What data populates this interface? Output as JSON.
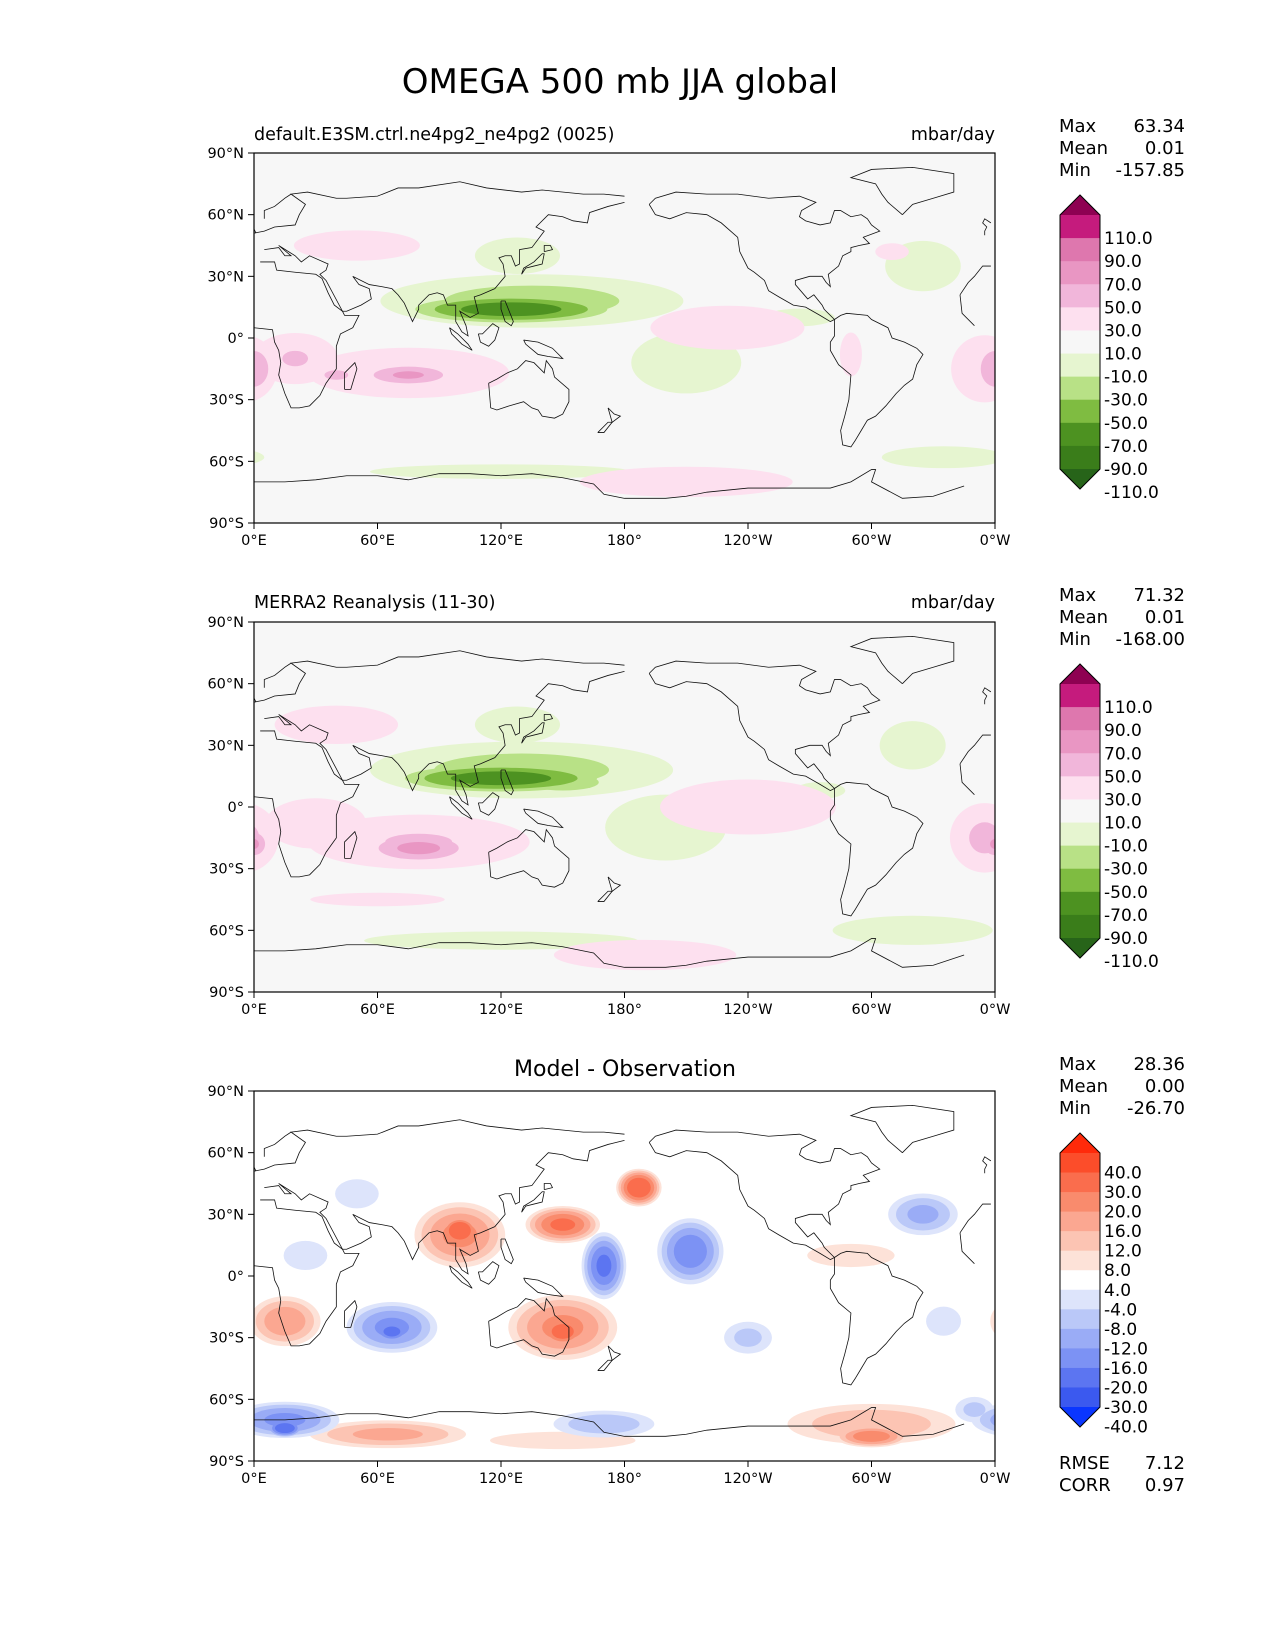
{
  "figure_title": "OMEGA 500 mb JJA global",
  "chart_data": [
    {
      "type": "heatmap",
      "id": "test",
      "title_left": "default.E3SM.ctrl.ne4pg2_ne4pg2 (0025)",
      "title_center": "",
      "units": "mbar/day",
      "x_ticks": [
        "0°E",
        "60°E",
        "120°E",
        "180°",
        "120°W",
        "60°W",
        "0°W"
      ],
      "y_ticks": [
        "90°N",
        "60°N",
        "30°N",
        "0°",
        "30°S",
        "60°S",
        "90°S"
      ],
      "xlim": [
        0,
        360
      ],
      "ylim": [
        -90,
        90
      ],
      "stats": [
        {
          "label": "Max",
          "value": "63.34"
        },
        {
          "label": "Mean",
          "value": "0.01"
        },
        {
          "label": "Min",
          "value": "-157.85"
        }
      ],
      "colorbar": {
        "levels": [
          "110.0",
          "90.0",
          "70.0",
          "50.0",
          "30.0",
          "10.0",
          "-10.0",
          "-30.0",
          "-50.0",
          "-70.0",
          "-90.0",
          "-110.0"
        ],
        "colors": [
          "#8e0152",
          "#c51b7d",
          "#de77ae",
          "#e996c3",
          "#f1b6da",
          "#fde0ef",
          "#f7f7f7",
          "#e6f5d0",
          "#b8e186",
          "#7fbc41",
          "#4d9221",
          "#3a7d1a",
          "#276419"
        ]
      },
      "features": [
        {
          "lon": 125,
          "lat": 14,
          "rx": 58,
          "ry": 8,
          "v": -85
        },
        {
          "lon": 155,
          "lat": 12,
          "rx": 28,
          "ry": 6,
          "v": -35
        },
        {
          "lon": 92,
          "lat": 18,
          "rx": 12,
          "ry": 6,
          "v": -30
        },
        {
          "lon": 135,
          "lat": 18,
          "rx": 85,
          "ry": 15,
          "v": -40
        },
        {
          "lon": 128,
          "lat": 40,
          "rx": 28,
          "ry": 12,
          "v": -22
        },
        {
          "lon": 210,
          "lat": -12,
          "rx": 50,
          "ry": 28,
          "v": -14
        },
        {
          "lon": 325,
          "lat": 35,
          "rx": 30,
          "ry": 20,
          "v": -16
        },
        {
          "lon": 120,
          "lat": -65,
          "rx": 90,
          "ry": 5,
          "v": -20
        },
        {
          "lon": 335,
          "lat": -58,
          "rx": 45,
          "ry": 8,
          "v": -18
        },
        {
          "lon": 265,
          "lat": 10,
          "rx": 32,
          "ry": 8,
          "v": -14
        },
        {
          "lon": 75,
          "lat": -17,
          "rx": 60,
          "ry": 15,
          "v": 30
        },
        {
          "lon": 75,
          "lat": -18,
          "rx": 25,
          "ry": 6,
          "v": 55
        },
        {
          "lon": 20,
          "lat": -10,
          "rx": 25,
          "ry": 15,
          "v": 32
        },
        {
          "lon": 40,
          "lat": -18,
          "rx": 10,
          "ry": 4,
          "v": 45
        },
        {
          "lon": 0,
          "lat": -15,
          "rx": 12,
          "ry": 15,
          "v": 45
        },
        {
          "lon": 355,
          "lat": -15,
          "rx": 20,
          "ry": 20,
          "v": 30
        },
        {
          "lon": 230,
          "lat": 5,
          "rx": 70,
          "ry": 20,
          "v": 14
        },
        {
          "lon": 210,
          "lat": -70,
          "rx": 70,
          "ry": 10,
          "v": 22
        },
        {
          "lon": 50,
          "lat": 45,
          "rx": 50,
          "ry": 12,
          "v": 16
        },
        {
          "lon": 310,
          "lat": 42,
          "rx": 20,
          "ry": 10,
          "v": 12
        },
        {
          "lon": 290,
          "lat": -8,
          "rx": 10,
          "ry": 20,
          "v": 14
        }
      ]
    },
    {
      "type": "heatmap",
      "id": "reference",
      "title_left": "MERRA2 Reanalysis (11-30)",
      "title_center": "",
      "units": "mbar/day",
      "x_ticks": [
        "0°E",
        "60°E",
        "120°E",
        "180°",
        "120°W",
        "60°W",
        "0°W"
      ],
      "y_ticks": [
        "90°N",
        "60°N",
        "30°N",
        "0°",
        "30°S",
        "60°S",
        "90°S"
      ],
      "xlim": [
        0,
        360
      ],
      "ylim": [
        -90,
        90
      ],
      "stats": [
        {
          "label": "Max",
          "value": "71.32"
        },
        {
          "label": "Mean",
          "value": "0.01"
        },
        {
          "label": "Min",
          "value": "-168.00"
        }
      ],
      "colorbar": {
        "levels": [
          "110.0",
          "90.0",
          "70.0",
          "50.0",
          "30.0",
          "10.0",
          "-10.0",
          "-30.0",
          "-50.0",
          "-70.0",
          "-90.0",
          "-110.0"
        ],
        "colors": [
          "#8e0152",
          "#c51b7d",
          "#de77ae",
          "#e996c3",
          "#f1b6da",
          "#fde0ef",
          "#f7f7f7",
          "#e6f5d0",
          "#b8e186",
          "#7fbc41",
          "#4d9221",
          "#3a7d1a",
          "#276419"
        ]
      },
      "features": [
        {
          "lon": 120,
          "lat": 14,
          "rx": 58,
          "ry": 8,
          "v": -85
        },
        {
          "lon": 150,
          "lat": 12,
          "rx": 35,
          "ry": 8,
          "v": -40
        },
        {
          "lon": 92,
          "lat": 18,
          "rx": 12,
          "ry": 6,
          "v": -30
        },
        {
          "lon": 130,
          "lat": 18,
          "rx": 85,
          "ry": 16,
          "v": -40
        },
        {
          "lon": 128,
          "lat": 40,
          "rx": 28,
          "ry": 12,
          "v": -22
        },
        {
          "lon": 200,
          "lat": -10,
          "rx": 55,
          "ry": 30,
          "v": -14
        },
        {
          "lon": 320,
          "lat": 30,
          "rx": 30,
          "ry": 22,
          "v": -14
        },
        {
          "lon": 120,
          "lat": -65,
          "rx": 90,
          "ry": 6,
          "v": -22
        },
        {
          "lon": 320,
          "lat": -60,
          "rx": 55,
          "ry": 10,
          "v": -20
        },
        {
          "lon": 275,
          "lat": 8,
          "rx": 30,
          "ry": 10,
          "v": -12
        },
        {
          "lon": 80,
          "lat": -17,
          "rx": 65,
          "ry": 16,
          "v": 32
        },
        {
          "lon": 80,
          "lat": -20,
          "rx": 28,
          "ry": 8,
          "v": 58
        },
        {
          "lon": 30,
          "lat": -8,
          "rx": 30,
          "ry": 15,
          "v": 30
        },
        {
          "lon": 355,
          "lat": -15,
          "rx": 20,
          "ry": 20,
          "v": 35
        },
        {
          "lon": 0,
          "lat": -18,
          "rx": 8,
          "ry": 8,
          "v": 55
        },
        {
          "lon": 240,
          "lat": 0,
          "rx": 80,
          "ry": 25,
          "v": 14
        },
        {
          "lon": 190,
          "lat": -72,
          "rx": 60,
          "ry": 10,
          "v": 22
        },
        {
          "lon": 40,
          "lat": 40,
          "rx": 45,
          "ry": 14,
          "v": 18
        },
        {
          "lon": 60,
          "lat": -45,
          "rx": 80,
          "ry": 8,
          "v": 12
        }
      ]
    },
    {
      "type": "heatmap",
      "id": "difference",
      "title_left": "",
      "title_center": "Model - Observation",
      "units": "",
      "x_ticks": [
        "0°E",
        "60°E",
        "120°E",
        "180°",
        "120°W",
        "60°W",
        "0°W"
      ],
      "y_ticks": [
        "90°N",
        "60°N",
        "30°N",
        "0°",
        "30°S",
        "60°S",
        "90°S"
      ],
      "xlim": [
        0,
        360
      ],
      "ylim": [
        -90,
        90
      ],
      "stats": [
        {
          "label": "Max",
          "value": "28.36"
        },
        {
          "label": "Mean",
          "value": "0.00"
        },
        {
          "label": "Min",
          "value": "-26.70"
        }
      ],
      "stats_bottom": [
        {
          "label": "RMSE",
          "value": "7.12"
        },
        {
          "label": "CORR",
          "value": "0.97"
        }
      ],
      "colorbar": {
        "levels": [
          "40.0",
          "30.0",
          "20.0",
          "16.0",
          "12.0",
          "8.0",
          "4.0",
          "-4.0",
          "-8.0",
          "-12.0",
          "-16.0",
          "-20.0",
          "-30.0",
          "-40.0"
        ],
        "colors": [
          "#ff2a0a",
          "#fc4d2a",
          "#fa6d4d",
          "#f98b6d",
          "#fba791",
          "#fcc4b3",
          "#fde2d8",
          "#ffffff",
          "#dde4fb",
          "#bac8f8",
          "#9aacf6",
          "#7c92f4",
          "#5c75f1",
          "#3b59ef",
          "#0a36ff"
        ]
      },
      "features": [
        {
          "lon": 100,
          "lat": 20,
          "rx": 25,
          "ry": 18,
          "v": 18
        },
        {
          "lon": 100,
          "lat": 22,
          "rx": 10,
          "ry": 8,
          "v": 28
        },
        {
          "lon": 150,
          "lat": 25,
          "rx": 20,
          "ry": 10,
          "v": 22
        },
        {
          "lon": 187,
          "lat": 43,
          "rx": 12,
          "ry": 10,
          "v": 26
        },
        {
          "lon": 150,
          "lat": -25,
          "rx": 30,
          "ry": 18,
          "v": 18
        },
        {
          "lon": 150,
          "lat": -27,
          "rx": 12,
          "ry": 8,
          "v": 25
        },
        {
          "lon": 15,
          "lat": -22,
          "rx": 20,
          "ry": 14,
          "v": 16
        },
        {
          "lon": 65,
          "lat": -77,
          "rx": 45,
          "ry": 8,
          "v": 14
        },
        {
          "lon": 300,
          "lat": -72,
          "rx": 50,
          "ry": 12,
          "v": 12
        },
        {
          "lon": 300,
          "lat": -78,
          "rx": 20,
          "ry": 6,
          "v": 20
        },
        {
          "lon": 150,
          "lat": -80,
          "rx": 50,
          "ry": 6,
          "v": 8
        },
        {
          "lon": 290,
          "lat": 10,
          "rx": 30,
          "ry": 8,
          "v": 8
        },
        {
          "lon": 170,
          "lat": 5,
          "rx": 12,
          "ry": 18,
          "v": -22
        },
        {
          "lon": 212,
          "lat": 12,
          "rx": 18,
          "ry": 18,
          "v": -20
        },
        {
          "lon": 67,
          "lat": -25,
          "rx": 25,
          "ry": 14,
          "v": -18
        },
        {
          "lon": 67,
          "lat": -27,
          "rx": 10,
          "ry": 6,
          "v": -24
        },
        {
          "lon": 15,
          "lat": -70,
          "rx": 30,
          "ry": 10,
          "v": -18
        },
        {
          "lon": 15,
          "lat": -74,
          "rx": 10,
          "ry": 5,
          "v": -26
        },
        {
          "lon": 170,
          "lat": -72,
          "rx": 30,
          "ry": 8,
          "v": -12
        },
        {
          "lon": 325,
          "lat": 30,
          "rx": 20,
          "ry": 12,
          "v": -14
        },
        {
          "lon": 50,
          "lat": 40,
          "rx": 15,
          "ry": 10,
          "v": -8
        },
        {
          "lon": 25,
          "lat": 10,
          "rx": 15,
          "ry": 10,
          "v": -8
        },
        {
          "lon": 240,
          "lat": -30,
          "rx": 15,
          "ry": 10,
          "v": -10
        },
        {
          "lon": 335,
          "lat": -22,
          "rx": 12,
          "ry": 10,
          "v": -8
        },
        {
          "lon": 350,
          "lat": -65,
          "rx": 12,
          "ry": 8,
          "v": -10
        }
      ]
    }
  ]
}
